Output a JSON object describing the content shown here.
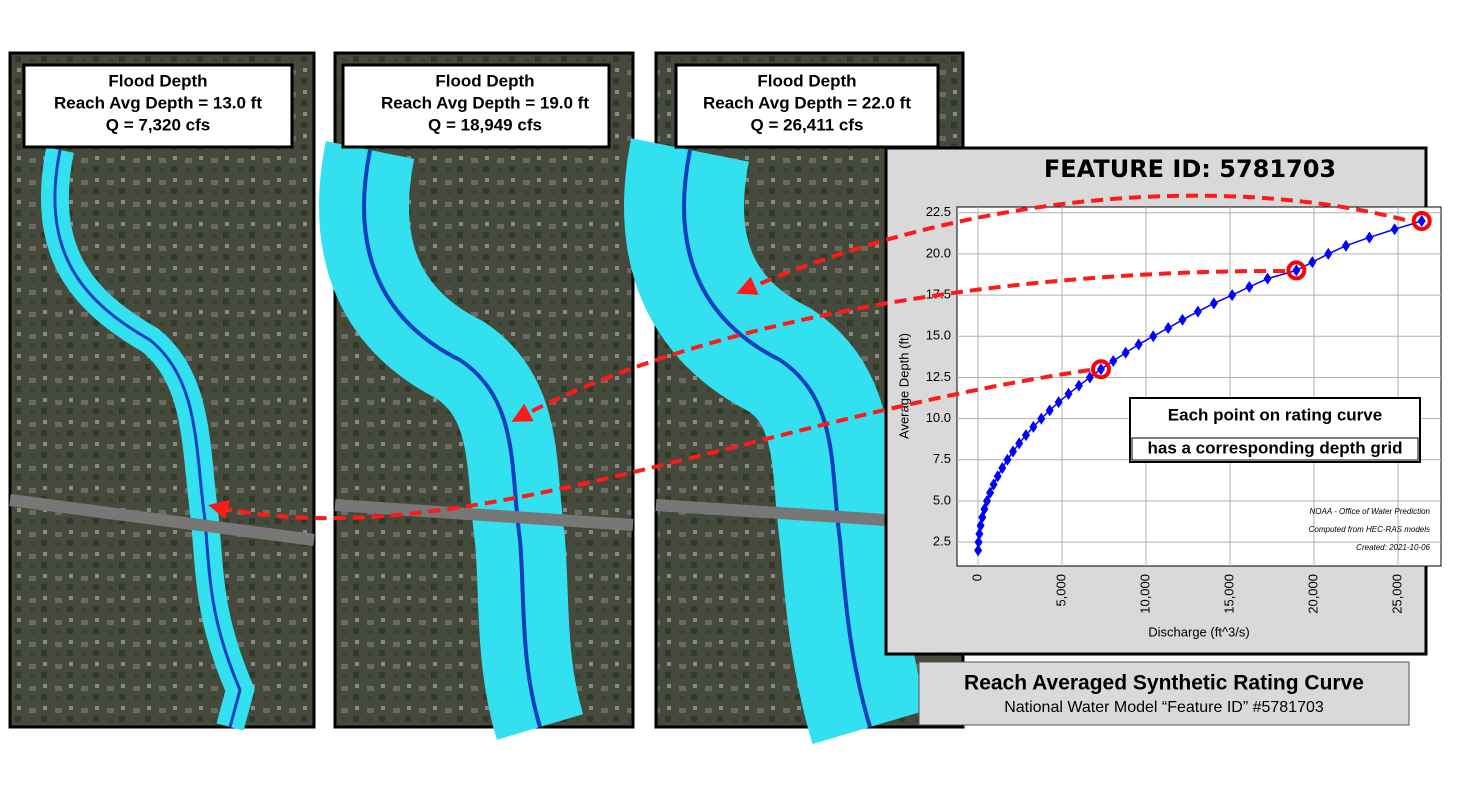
{
  "panels": [
    {
      "title": "Flood Depth",
      "depth": "Reach Avg Depth = 13.0 ft",
      "flow": "Q = 7,320 cfs"
    },
    {
      "title": "Flood Depth",
      "depth": "Reach Avg Depth = 19.0 ft",
      "flow": "Q = 18,949 cfs"
    },
    {
      "title": "Flood Depth",
      "depth": "Reach Avg Depth = 22.0 ft",
      "flow": "Q = 26,411 cfs"
    }
  ],
  "caption": {
    "title": "Reach Averaged Synthetic Rating Curve",
    "subtitle": "National Water Model “Feature ID” #5781703"
  },
  "chart_data": {
    "type": "line",
    "title": "FEATURE ID: 5781703",
    "x_label": "Discharge (ft^3/s)",
    "y_label": "Average Depth (ft)",
    "annotations": [
      "Each point on rating curve",
      "has a corresponding depth grid"
    ],
    "credits": [
      "NOAA - Office of Water Prediction",
      "Computed from HEC-RAS models",
      "Created: 2021-10-06"
    ],
    "series": [
      {
        "color": "#0000ff",
        "marker": "diamond",
        "x": [
          7,
          34,
          82,
          156,
          255,
          381,
          535,
          717,
          929,
          1173,
          1446,
          1751,
          2084,
          2451,
          2856,
          3297,
          3767,
          4267,
          4801,
          5389,
          6008,
          6661,
          7320,
          8051,
          8789,
          9561,
          10428,
          11322,
          12172,
          13090,
          14042,
          15130,
          16150,
          17238,
          18949,
          19900,
          20850,
          21900,
          23300,
          24800,
          26411
        ],
        "values": [
          2,
          2.5,
          3,
          3.5,
          4,
          4.5,
          5,
          5.5,
          6,
          6.5,
          7,
          7.5,
          8,
          8.5,
          9,
          9.5,
          10,
          10.5,
          11,
          11.5,
          12,
          12.5,
          13,
          13.5,
          14,
          14.5,
          15,
          15.5,
          16,
          16.5,
          17,
          17.5,
          18,
          18.5,
          19,
          19.5,
          20,
          20.5,
          21,
          21.5,
          22
        ]
      },
      {
        "color": "#ff0000",
        "marker": "circle",
        "x": [
          7320,
          18949,
          26411
        ],
        "values": [
          13,
          19,
          22
        ]
      }
    ],
    "xlim": [
      -1250,
      27560
    ],
    "xticks": [
      0,
      {
        "value": 5000,
        "label": "5,000"
      },
      {
        "value": 10000,
        "label": "10,000"
      },
      {
        "value": 15000,
        "label": "15,000"
      },
      {
        "value": 20000,
        "label": "20,000"
      },
      {
        "value": 25000,
        "label": "25,000"
      }
    ],
    "ylim": [
      1.05,
      22.85
    ],
    "yticks": [
      2.5,
      {
        "value": 5,
        "label": "5.0"
      },
      7.5,
      {
        "value": 10,
        "label": "10.0"
      },
      12.5,
      {
        "value": 15,
        "label": "15.0"
      },
      17.5,
      {
        "value": 20,
        "label": "20.0"
      },
      22.5
    ],
    "grid": true
  }
}
